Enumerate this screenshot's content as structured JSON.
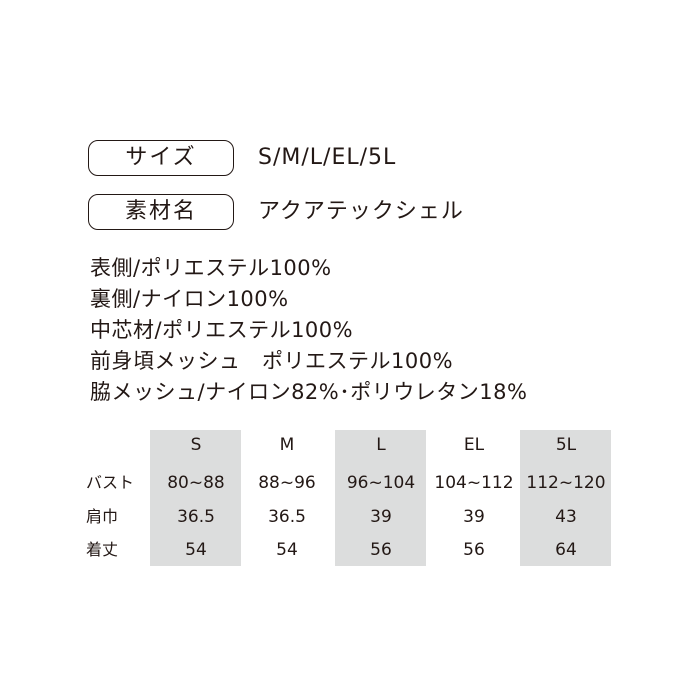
{
  "specs": [
    {
      "label": "サイズ",
      "value": "S/M/L/EL/5L"
    },
    {
      "label": "素材名",
      "value": "アクアテックシェル"
    }
  ],
  "materials": [
    "表側/ポリエステル100%",
    "裏側/ナイロン100%",
    "中芯材/ポリエステル100%",
    "前身頃メッシュ　ポリエステル100%",
    "脇メッシュ/ナイロン82%･ポリウレタン18%"
  ],
  "table": {
    "headers": [
      "S",
      "M",
      "L",
      "EL",
      "5L"
    ],
    "rows": [
      {
        "label": "バスト",
        "cells": [
          "80~88",
          "88~96",
          "96~104",
          "104~112",
          "112~120"
        ]
      },
      {
        "label": "肩巾",
        "cells": [
          "36.5",
          "36.5",
          "39",
          "39",
          "43"
        ]
      },
      {
        "label": "着丈",
        "cells": [
          "54",
          "54",
          "56",
          "56",
          "64"
        ]
      }
    ]
  }
}
